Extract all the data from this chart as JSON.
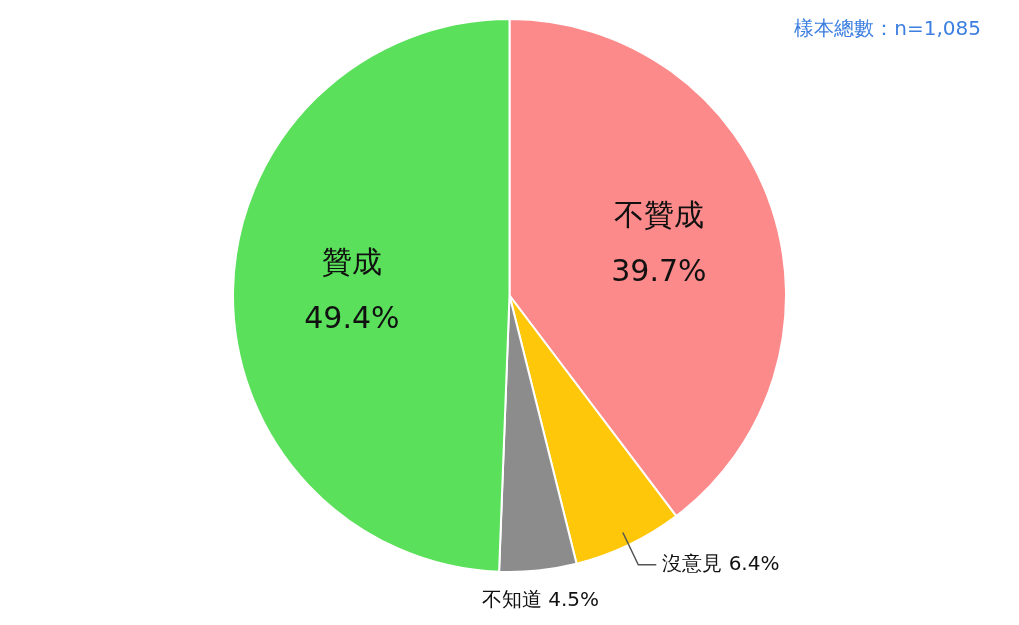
{
  "chart_data": {
    "type": "pie",
    "categories": [
      "不贊成",
      "沒意見",
      "不知道",
      "贊成"
    ],
    "values": [
      39.7,
      6.4,
      4.5,
      49.4
    ],
    "colors": [
      "#fd8a8a",
      "#ffc709",
      "#8c8c8c",
      "#5ae05a"
    ],
    "value_labels": [
      "39.7%",
      "6.4%",
      "4.5%",
      "49.4%"
    ],
    "legend": false,
    "annotations": [
      "樣本總數：n=1,085"
    ]
  }
}
